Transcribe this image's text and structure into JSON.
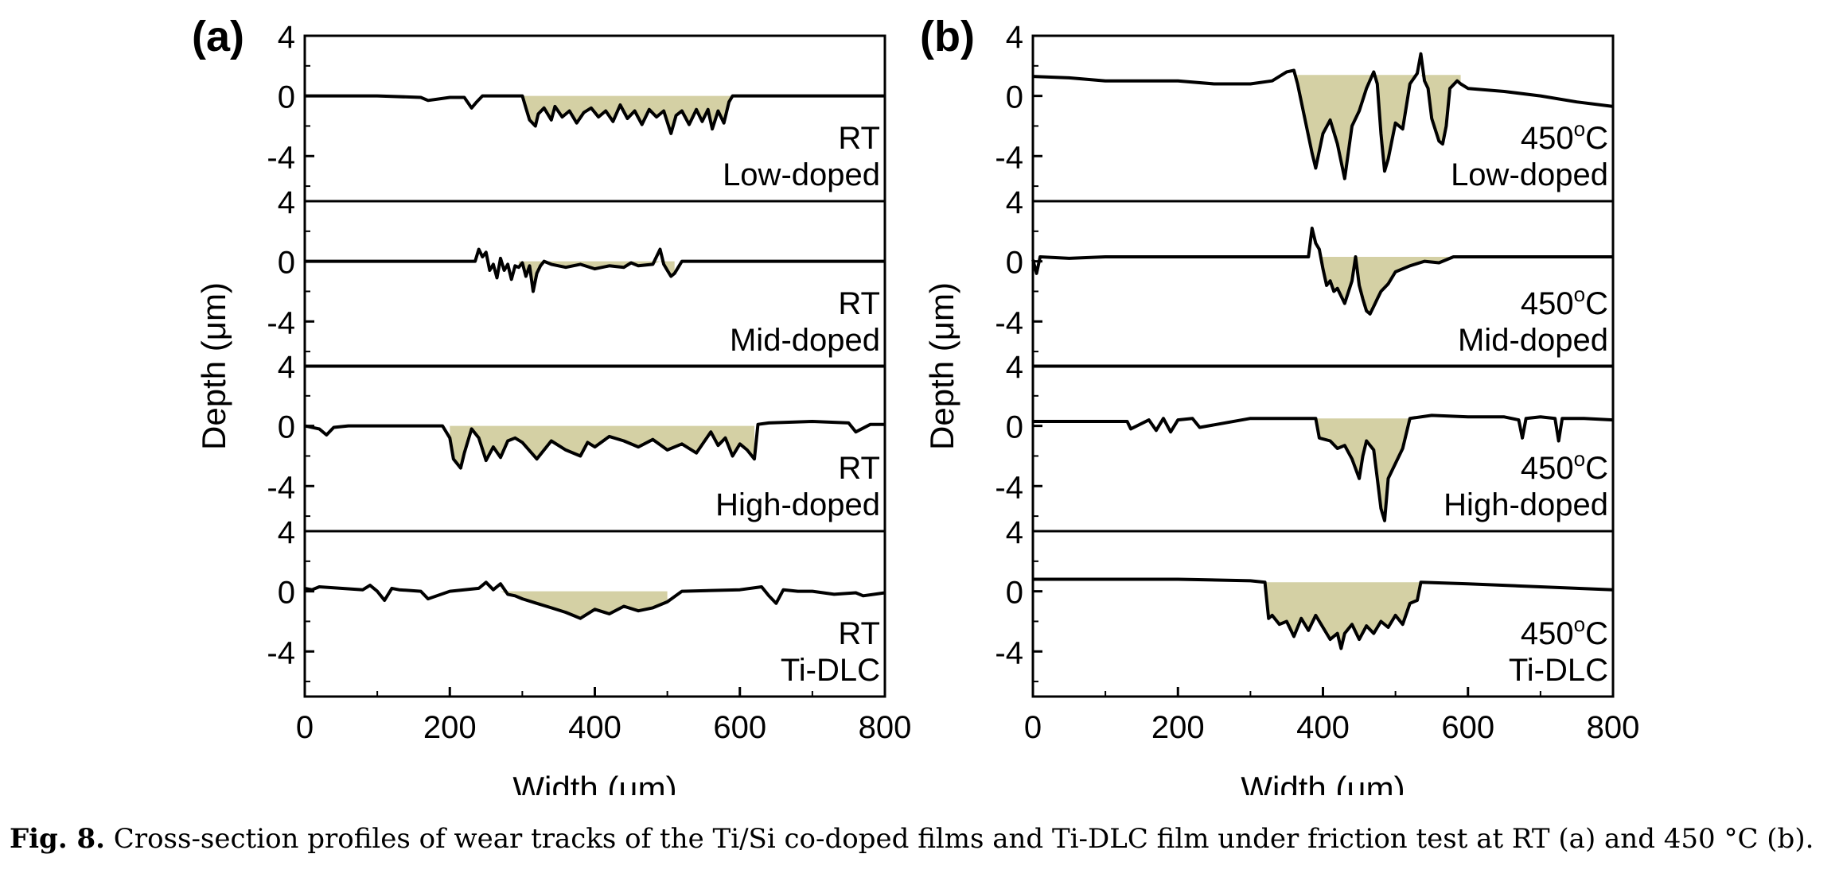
{
  "figure": {
    "caption_label": "Fig. 8.",
    "caption_text": " Cross-section profiles of wear tracks of the Ti/Si co-doped films and Ti-DLC film under friction test at RT (a) and 450 °C (b)."
  },
  "colors": {
    "fill": "#d4d0a4",
    "line": "#000000"
  },
  "chart_data": [
    {
      "type": "line",
      "panel_label": "(a)",
      "xlabel": "Width (μm)",
      "ylabel": "Depth (μm)",
      "xlim": [
        0,
        800
      ],
      "ylim": [
        -7,
        4
      ],
      "xticks": [
        0,
        200,
        400,
        600,
        800
      ],
      "yticks": [
        4,
        0,
        -4
      ],
      "series": [
        {
          "name": "RT Low-doped",
          "label_line1": "RT",
          "label_line2": "Low-doped",
          "fill_range": [
            300,
            590
          ],
          "fill_level": 0,
          "x": [
            0,
            100,
            160,
            170,
            200,
            220,
            230,
            237,
            245,
            300,
            305,
            310,
            318,
            322,
            330,
            340,
            345,
            355,
            365,
            375,
            385,
            395,
            405,
            415,
            425,
            435,
            445,
            455,
            465,
            475,
            485,
            495,
            505,
            512,
            520,
            530,
            540,
            548,
            556,
            562,
            570,
            578,
            585,
            590,
            600,
            700,
            800
          ],
          "y": [
            0,
            0,
            -0.1,
            -0.3,
            -0.1,
            -0.1,
            -0.8,
            -0.4,
            0,
            0,
            -0.8,
            -1.6,
            -2.0,
            -1.2,
            -0.8,
            -1.6,
            -0.7,
            -1.4,
            -1.0,
            -1.8,
            -1.1,
            -0.8,
            -1.4,
            -1.0,
            -1.7,
            -0.6,
            -1.5,
            -1.0,
            -1.9,
            -0.9,
            -1.4,
            -1.0,
            -2.5,
            -1.3,
            -1.0,
            -1.9,
            -0.9,
            -1.7,
            -0.9,
            -2.2,
            -1.0,
            -1.8,
            -0.4,
            0,
            0,
            0,
            0
          ]
        },
        {
          "name": "RT Mid-doped",
          "label_line1": "RT",
          "label_line2": "Mid-doped",
          "fill_range": [
            295,
            510
          ],
          "fill_level": 0,
          "x": [
            0,
            100,
            200,
            235,
            240,
            245,
            250,
            255,
            260,
            265,
            270,
            275,
            280,
            285,
            290,
            295,
            300,
            305,
            310,
            315,
            320,
            325,
            330,
            340,
            360,
            380,
            400,
            420,
            440,
            450,
            460,
            480,
            490,
            495,
            500,
            505,
            510,
            520,
            600,
            700,
            800
          ],
          "y": [
            0,
            0,
            0,
            0,
            0.8,
            0.3,
            0.6,
            -0.6,
            -0.2,
            -1.1,
            0.2,
            -0.6,
            -0.2,
            -1.2,
            -0.3,
            -0.4,
            -0.1,
            -1.0,
            -0.3,
            -2.0,
            -0.8,
            -0.3,
            0,
            -0.2,
            -0.4,
            -0.2,
            -0.5,
            -0.3,
            -0.4,
            -0.1,
            -0.3,
            -0.2,
            0.8,
            -0.2,
            -0.6,
            -1.0,
            -0.8,
            0,
            0,
            0,
            0
          ]
        },
        {
          "name": "RT High-doped",
          "label_line1": "RT",
          "label_line2": "High-doped",
          "fill_range": [
            200,
            620
          ],
          "fill_level": 0,
          "x": [
            0,
            20,
            30,
            40,
            60,
            100,
            150,
            190,
            200,
            205,
            215,
            220,
            230,
            240,
            250,
            260,
            270,
            280,
            290,
            300,
            320,
            340,
            360,
            380,
            390,
            400,
            420,
            440,
            460,
            480,
            500,
            520,
            540,
            560,
            570,
            580,
            590,
            600,
            610,
            620,
            625,
            640,
            700,
            750,
            760,
            780,
            800
          ],
          "y": [
            0,
            -0.2,
            -0.6,
            -0.1,
            0,
            0,
            0,
            0,
            -0.8,
            -2.2,
            -2.8,
            -1.8,
            -0.2,
            -0.8,
            -2.3,
            -1.4,
            -2.1,
            -1.0,
            -0.8,
            -1.1,
            -2.2,
            -1.0,
            -1.6,
            -2.0,
            -1.1,
            -1.4,
            -0.7,
            -1.0,
            -1.4,
            -0.9,
            -1.6,
            -1.2,
            -1.8,
            -0.4,
            -1.3,
            -0.8,
            -2.0,
            -1.2,
            -1.6,
            -2.2,
            0.1,
            0.2,
            0.3,
            0.2,
            -0.4,
            0.1,
            0.1
          ]
        },
        {
          "name": "RT Ti-DLC",
          "label_line1": "RT",
          "label_line2": "Ti-DLC",
          "fill_range": [
            240,
            500
          ],
          "fill_level": 0,
          "x": [
            0,
            10,
            20,
            50,
            80,
            90,
            100,
            110,
            120,
            130,
            160,
            170,
            200,
            240,
            250,
            260,
            270,
            280,
            290,
            300,
            320,
            340,
            360,
            370,
            380,
            400,
            420,
            440,
            460,
            480,
            500,
            520,
            600,
            630,
            640,
            650,
            660,
            680,
            700,
            730,
            760,
            770,
            800
          ],
          "y": [
            0.2,
            0.1,
            0.3,
            0.2,
            0.1,
            0.4,
            0.0,
            -0.6,
            0.2,
            0.1,
            0,
            -0.5,
            0,
            0.2,
            0.6,
            0.1,
            0.5,
            -0.2,
            -0.3,
            -0.5,
            -0.8,
            -1.1,
            -1.4,
            -1.6,
            -1.8,
            -1.2,
            -1.5,
            -1.0,
            -1.3,
            -1.1,
            -0.7,
            0.0,
            0.1,
            0.3,
            -0.3,
            -0.8,
            0.1,
            0,
            0,
            -0.2,
            -0.1,
            -0.3,
            -0.1
          ]
        }
      ]
    },
    {
      "type": "line",
      "panel_label": "(b)",
      "xlabel": "Width (μm)",
      "ylabel": "Depth (μm)",
      "xlim": [
        0,
        800
      ],
      "ylim": [
        -7,
        4
      ],
      "xticks": [
        0,
        200,
        400,
        600,
        800
      ],
      "yticks": [
        4,
        0,
        -4
      ],
      "series": [
        {
          "name": "450°C Low-doped",
          "label_line1": "450°C",
          "label_line2": "Low-doped",
          "fill_range": [
            360,
            590
          ],
          "fill_level": 1.4,
          "x": [
            0,
            50,
            100,
            150,
            200,
            250,
            300,
            330,
            350,
            360,
            365,
            375,
            385,
            390,
            400,
            410,
            420,
            430,
            440,
            450,
            460,
            470,
            475,
            480,
            485,
            490,
            500,
            510,
            520,
            530,
            535,
            540,
            545,
            550,
            560,
            565,
            570,
            575,
            585,
            590,
            600,
            650,
            700,
            750,
            800
          ],
          "y": [
            1.3,
            1.2,
            1.0,
            1.0,
            1.0,
            0.8,
            0.8,
            1.0,
            1.6,
            1.7,
            0.8,
            -1.5,
            -3.8,
            -4.8,
            -2.5,
            -1.6,
            -3.2,
            -5.5,
            -2.0,
            -1.0,
            0.5,
            1.6,
            0.8,
            -2.5,
            -5.0,
            -4.2,
            -1.8,
            -2.2,
            0.8,
            1.5,
            2.8,
            1.0,
            0.5,
            -1.5,
            -3.0,
            -3.2,
            -2.0,
            0.5,
            1.0,
            0.8,
            0.5,
            0.3,
            0,
            -0.4,
            -0.7
          ]
        },
        {
          "name": "450°C Mid-doped",
          "label_line1": "450°C",
          "label_line2": "Mid-doped",
          "fill_range": [
            385,
            590
          ],
          "fill_level": 0.3,
          "x": [
            0,
            5,
            10,
            50,
            100,
            200,
            300,
            380,
            385,
            390,
            395,
            400,
            405,
            410,
            415,
            420,
            430,
            440,
            445,
            450,
            455,
            460,
            465,
            470,
            475,
            480,
            490,
            500,
            520,
            540,
            560,
            580,
            600,
            700,
            800
          ],
          "y": [
            0.1,
            -0.8,
            0.3,
            0.2,
            0.3,
            0.3,
            0.3,
            0.3,
            2.2,
            1.2,
            0.8,
            -0.5,
            -1.6,
            -1.3,
            -2.0,
            -1.8,
            -2.8,
            -1.3,
            0.3,
            -1.6,
            -2.5,
            -3.3,
            -3.5,
            -3.0,
            -2.5,
            -2.0,
            -1.5,
            -0.7,
            -0.3,
            0,
            -0.1,
            0.3,
            0.3,
            0.3,
            0.3
          ]
        },
        {
          "name": "450°C High-doped",
          "label_line1": "450°C",
          "label_line2": "High-doped",
          "fill_range": [
            390,
            520
          ],
          "fill_level": 0.5,
          "x": [
            0,
            100,
            130,
            135,
            160,
            170,
            180,
            190,
            200,
            220,
            230,
            300,
            360,
            390,
            395,
            410,
            420,
            430,
            440,
            450,
            455,
            460,
            470,
            475,
            480,
            485,
            490,
            500,
            510,
            520,
            550,
            600,
            650,
            670,
            675,
            680,
            700,
            720,
            725,
            730,
            760,
            800
          ],
          "y": [
            0.3,
            0.3,
            0.3,
            -0.2,
            0.4,
            -0.3,
            0.5,
            -0.4,
            0.4,
            0.5,
            -0.1,
            0.5,
            0.5,
            0.5,
            -0.8,
            -1.0,
            -1.5,
            -1.3,
            -2.2,
            -3.5,
            -2.0,
            -1.0,
            -1.6,
            -3.5,
            -5.5,
            -6.3,
            -3.5,
            -2.5,
            -1.5,
            0.5,
            0.7,
            0.6,
            0.6,
            0.4,
            -0.8,
            0.5,
            0.6,
            0.5,
            -1.0,
            0.5,
            0.5,
            0.4
          ]
        },
        {
          "name": "450°C Ti-DLC",
          "label_line1": "450°C",
          "label_line2": "Ti-DLC",
          "fill_range": [
            320,
            535
          ],
          "fill_level": 0.6,
          "x": [
            0,
            100,
            200,
            300,
            320,
            325,
            330,
            340,
            350,
            360,
            370,
            380,
            390,
            400,
            410,
            420,
            425,
            430,
            440,
            450,
            460,
            470,
            480,
            490,
            500,
            510,
            520,
            530,
            535,
            600,
            700,
            800
          ],
          "y": [
            0.8,
            0.8,
            0.8,
            0.7,
            0.6,
            -1.8,
            -1.6,
            -2.2,
            -2.0,
            -3.0,
            -1.8,
            -2.6,
            -1.6,
            -2.4,
            -3.2,
            -2.8,
            -3.8,
            -2.8,
            -2.2,
            -3.2,
            -2.3,
            -2.8,
            -2.0,
            -2.4,
            -1.6,
            -2.2,
            -0.8,
            -0.6,
            0.6,
            0.5,
            0.3,
            0.1
          ]
        }
      ]
    }
  ]
}
